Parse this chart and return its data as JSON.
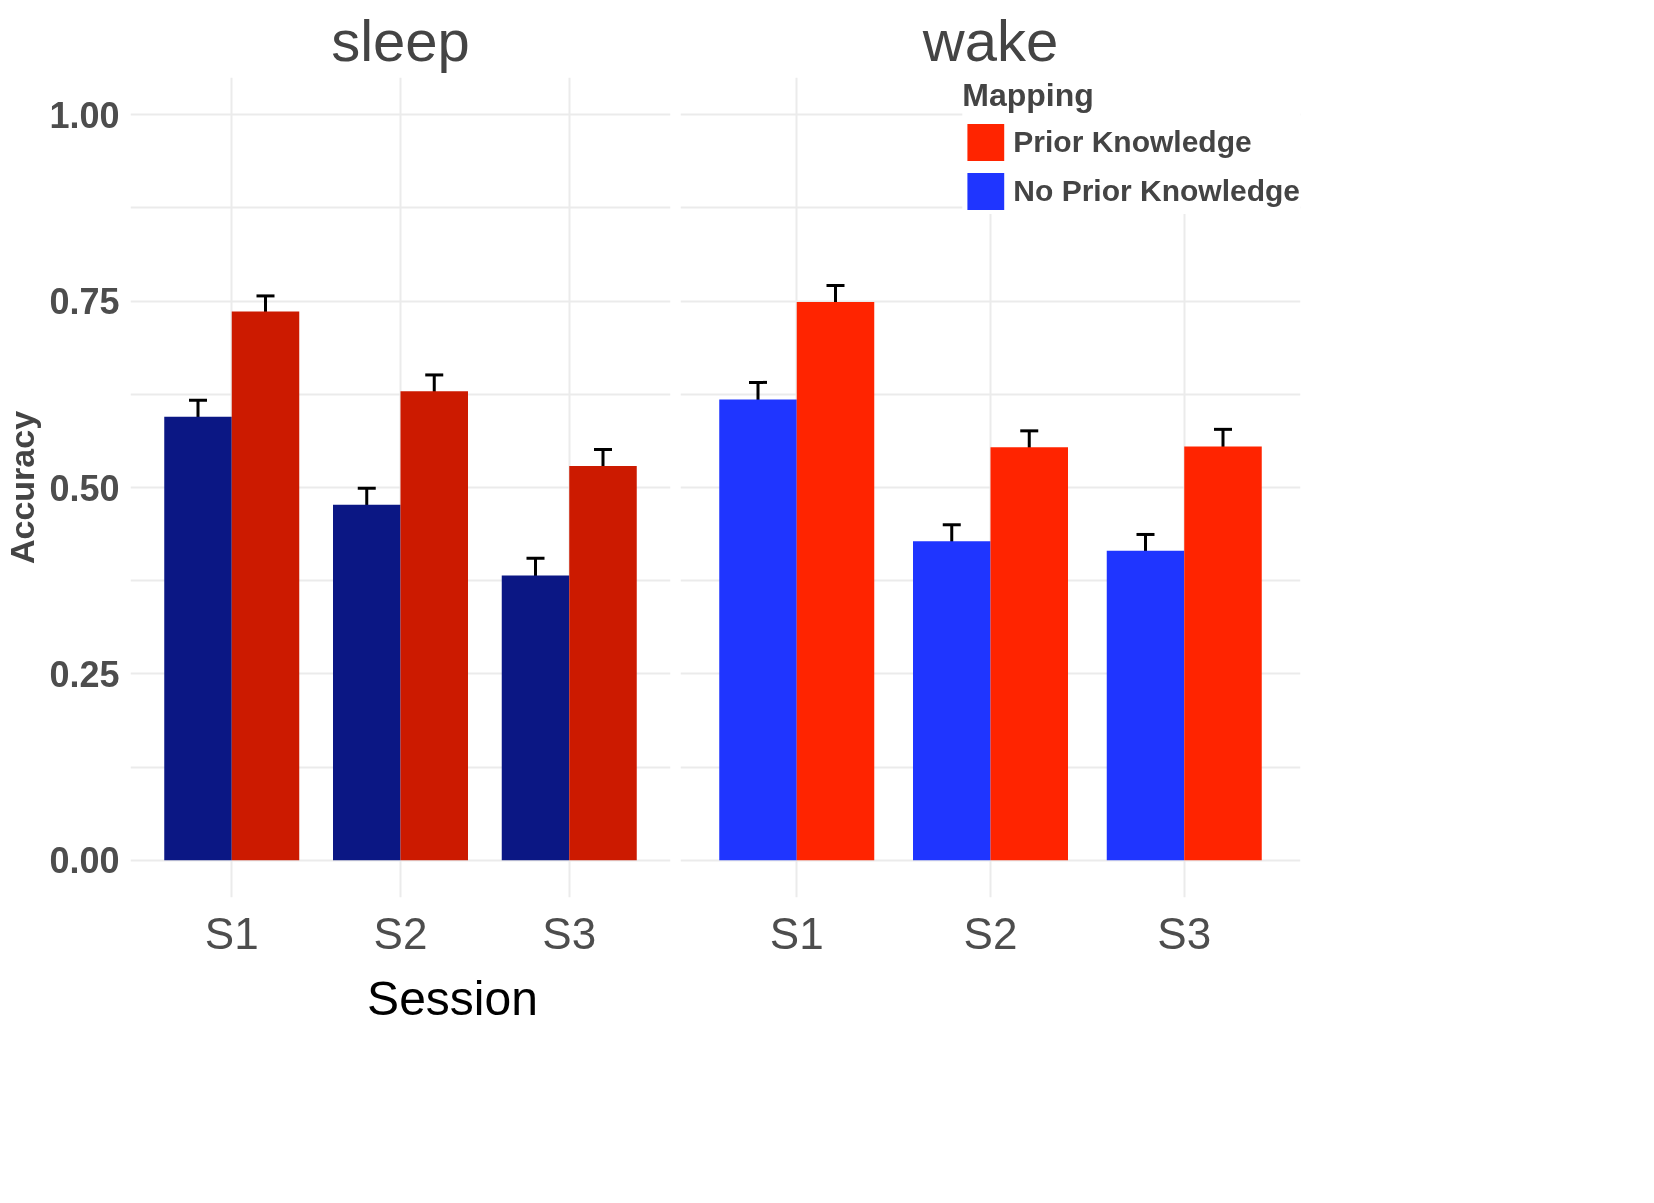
{
  "chart_data": [
    {
      "type": "bar",
      "title": "sleep",
      "ylabel": "Accuracy",
      "categories": [
        "S1",
        "S2",
        "S3"
      ],
      "ylim": [
        -0.05,
        1.05
      ],
      "yticks": [
        {
          "value": 0,
          "label": "0.00"
        },
        {
          "value": 0.125,
          "label": null
        },
        0.25,
        {
          "value": 0.375,
          "label": null
        },
        {
          "value": 0.5,
          "label": "0.50"
        },
        {
          "value": 0.625,
          "label": null
        },
        0.75,
        {
          "value": 0.875,
          "label": null
        },
        {
          "value": 1,
          "label": "1.00"
        }
      ],
      "grid": true,
      "legend": false,
      "series": [
        {
          "color": "#0b1784",
          "values": [
            0.595,
            0.477,
            0.382
          ],
          "errors": [
            0.022,
            0.022,
            0.023
          ]
        },
        {
          "color": "#cc1a00",
          "values": [
            0.736,
            0.629,
            0.529
          ],
          "errors": [
            0.021,
            0.022,
            0.022
          ]
        }
      ]
    },
    {
      "type": "bar",
      "title": "wake",
      "xlabel": "Session",
      "legend_title": "Mapping",
      "categories": [
        "S1",
        "S2",
        "S3"
      ],
      "ylim": [
        -0.05,
        1.05
      ],
      "yticks": [
        0,
        {
          "value": 0.125,
          "label": null
        },
        0.25,
        {
          "value": 0.375,
          "label": null
        },
        0.5,
        {
          "value": 0.625,
          "label": null
        },
        0.75,
        {
          "value": 0.875,
          "label": null
        },
        1
      ],
      "grid": true,
      "legend": "top right",
      "tick_labels": "x",
      "series": [
        {
          "name": "No Prior Knowledge",
          "color": "#1f35ff",
          "values": [
            0.618,
            0.428,
            0.415
          ],
          "errors": [
            0.023,
            0.022,
            0.022
          ]
        },
        {
          "name": "Prior Knowledge",
          "color": "#ff2400",
          "values": [
            0.749,
            0.554,
            0.555
          ],
          "errors": [
            0.022,
            0.022,
            0.023
          ]
        }
      ]
    }
  ]
}
